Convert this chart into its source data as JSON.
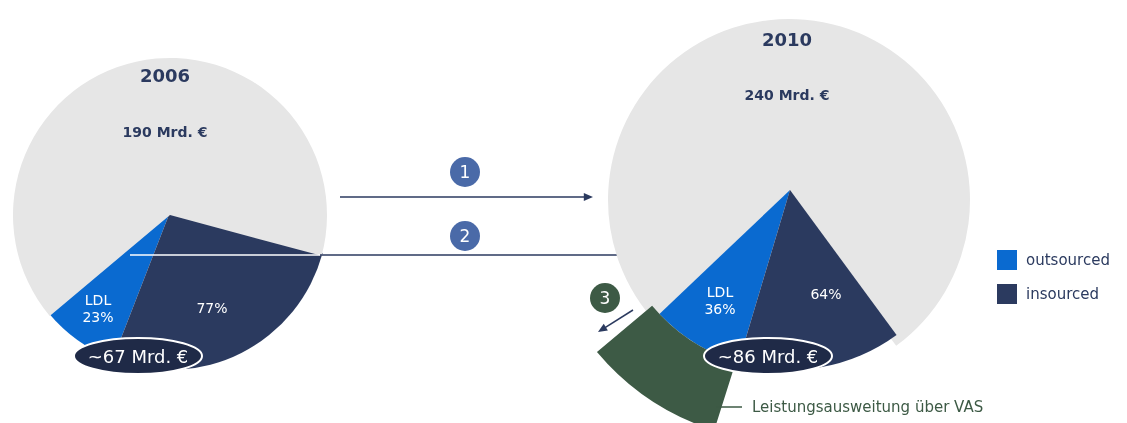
{
  "chart_data": [
    {
      "type": "pie",
      "title": "2006",
      "subtitle": "190 Mrd. €",
      "categories": [
        null,
        null,
        null
      ],
      "values": [
        8.0,
        26.7,
        65.3
      ],
      "colors": [
        "#0a6ad0",
        "#2b3a5f",
        "#e6e6e6"
      ],
      "annotations": [
        "~67 Mrd. €",
        "1",
        "2",
        "LDL\n23%",
        "77%"
      ]
    },
    {
      "type": "pie",
      "title": "2010",
      "subtitle": "240 Mrd. €",
      "categories": [
        "outsourced",
        "insourced",
        null
      ],
      "values": [
        8.3,
        14.7,
        77.0
      ],
      "colors": [
        "#0a6ad0",
        "#2b3a5f",
        "#e6e6e6"
      ],
      "annotations": [
        "~86 Mrd. €",
        "3",
        "Leistungsausweitung über VAS",
        "LDL\n36%",
        "64%"
      ],
      "legend": "right"
    }
  ]
}
